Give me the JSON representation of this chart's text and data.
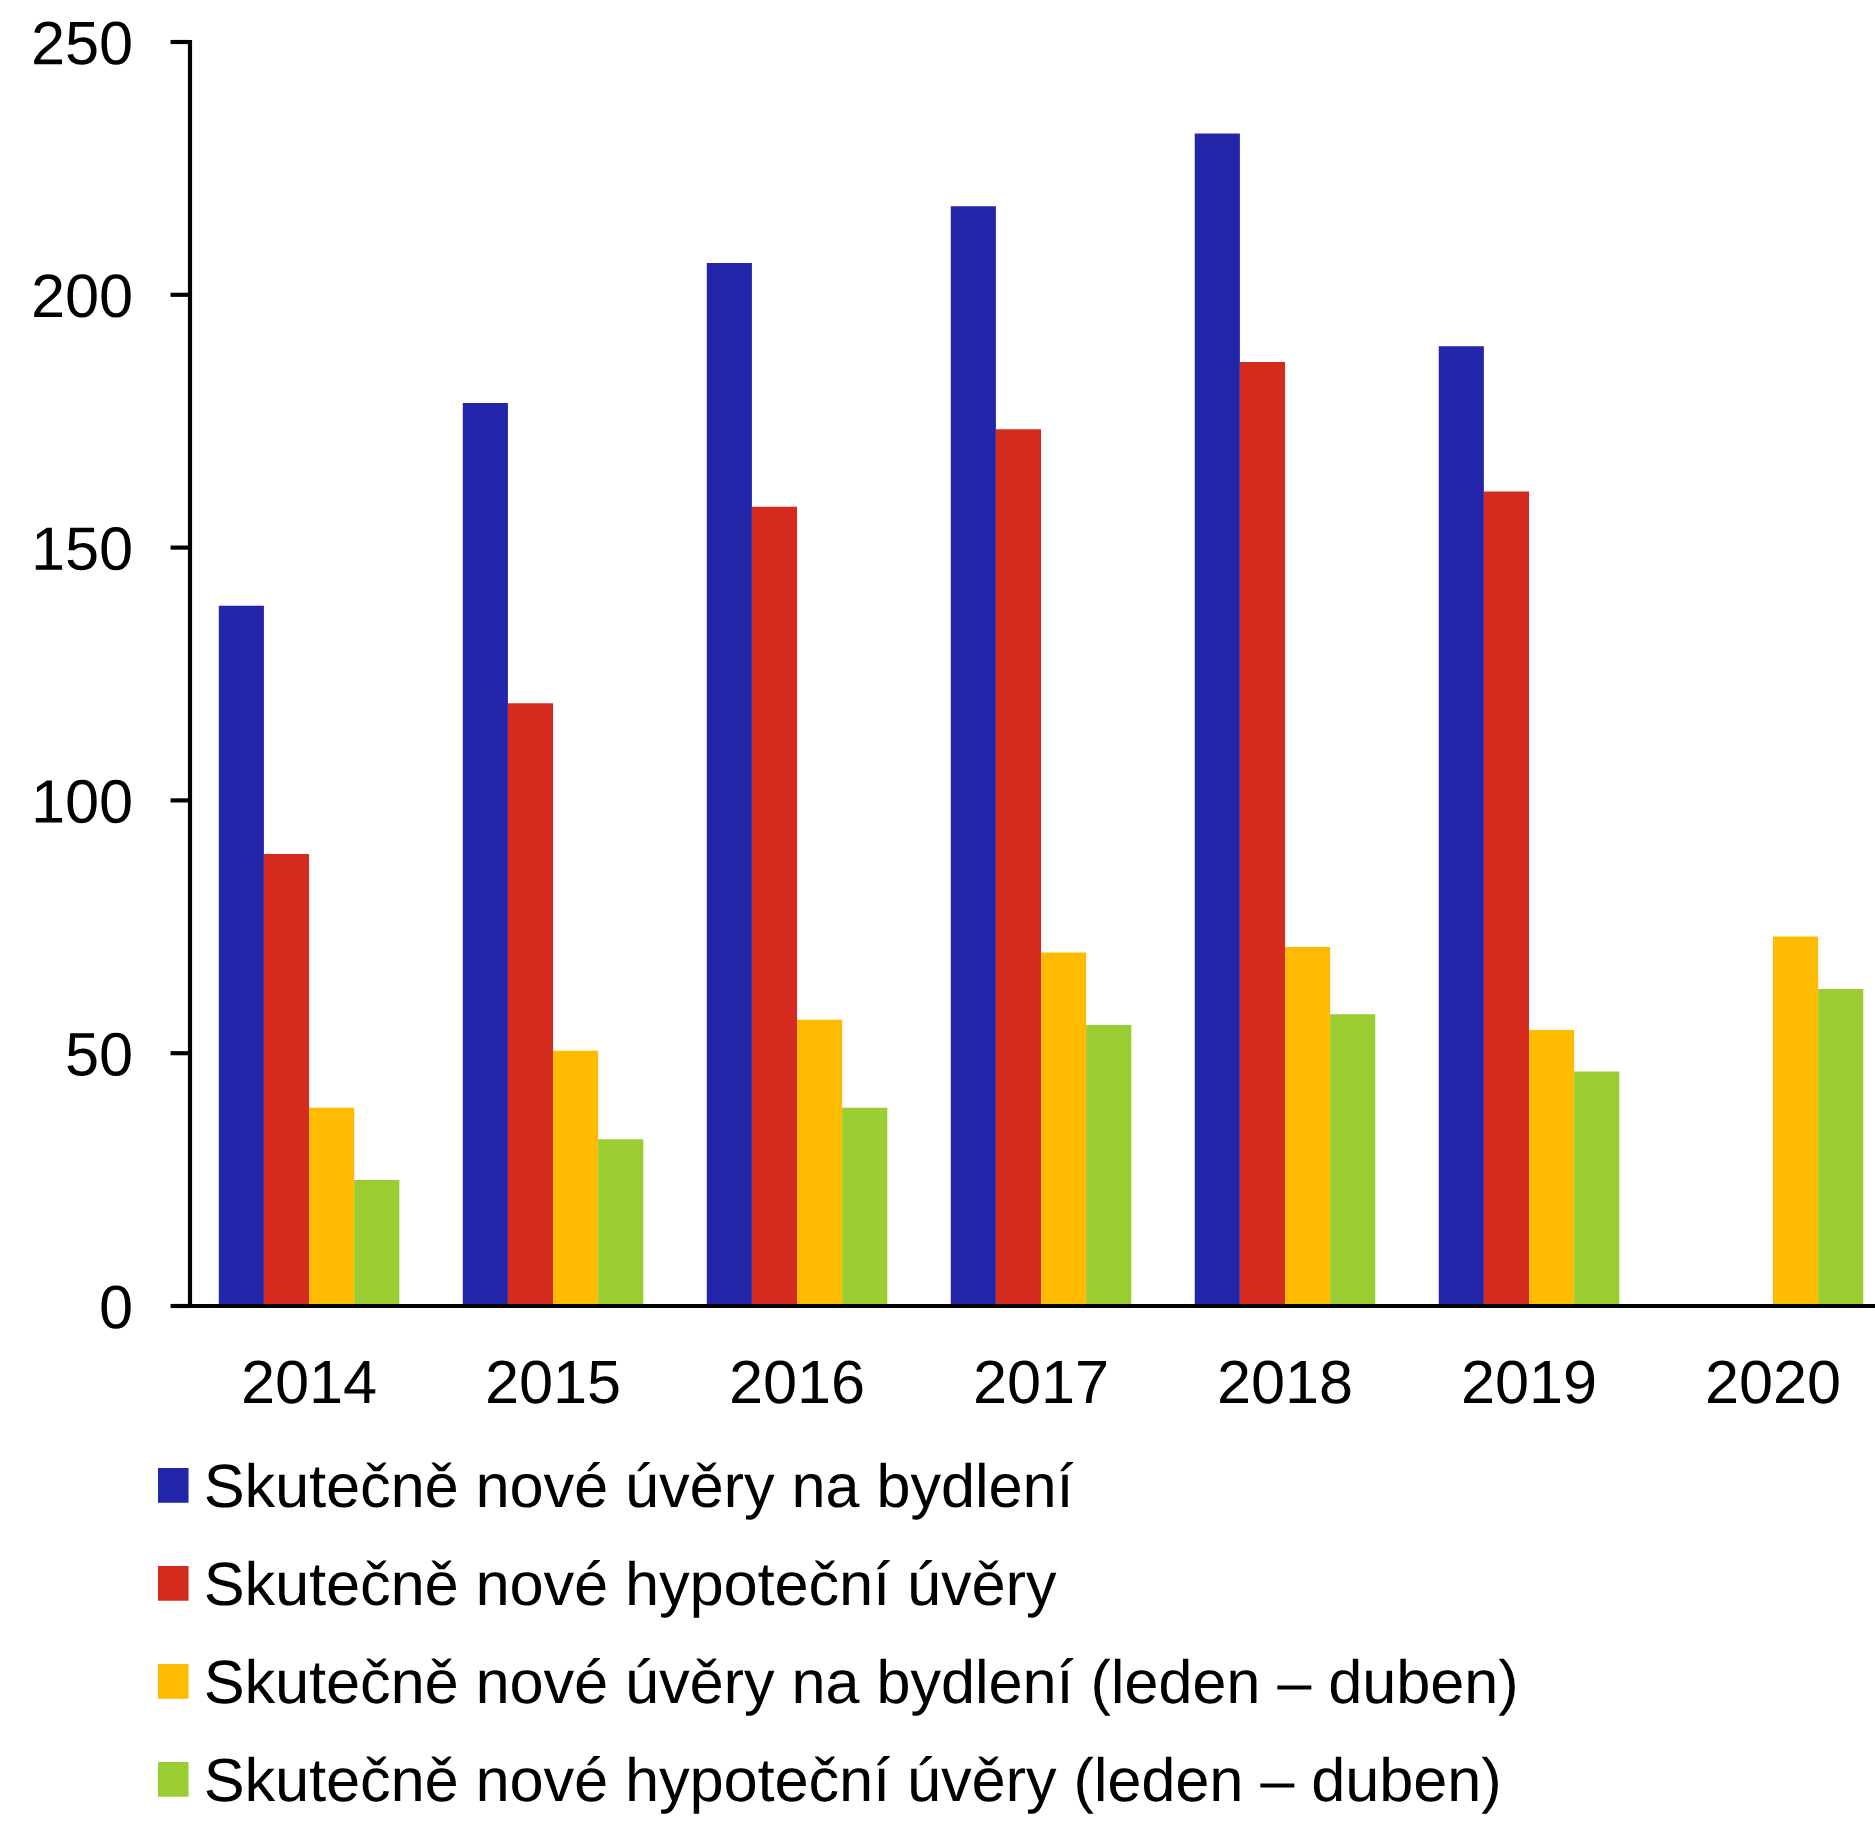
{
  "chart_data": {
    "type": "bar",
    "categories": [
      "2014",
      "2015",
      "2016",
      "2017",
      "2018",
      "2019",
      "2020"
    ],
    "series": [
      {
        "name": "Skutečně nové úvěry na bydlení",
        "color": "#2326a8",
        "values": [
          138.5,
          178.6,
          206.3,
          217.5,
          231.9,
          189.8,
          null
        ]
      },
      {
        "name": "Skutečně nové hypoteční úvěry",
        "color": "#d52b1e",
        "values": [
          89.4,
          119.2,
          158.1,
          173.4,
          186.7,
          161.1,
          null
        ]
      },
      {
        "name": "Skutečně nové úvěry na bydlení (leden – duben)",
        "color": "#ffbb00",
        "values": [
          39.2,
          50.5,
          56.6,
          69.9,
          71.0,
          54.6,
          73.1
        ]
      },
      {
        "name": "Skutečně nové hypoteční úvěry (leden – duben)",
        "color": "#9acd32",
        "values": [
          24.9,
          33.0,
          39.2,
          55.6,
          57.7,
          46.4,
          62.7
        ]
      }
    ],
    "ylim": [
      0,
      250
    ],
    "yticks": [
      0,
      50,
      100,
      150,
      200,
      250
    ],
    "grid": false,
    "legend": "bottom"
  }
}
